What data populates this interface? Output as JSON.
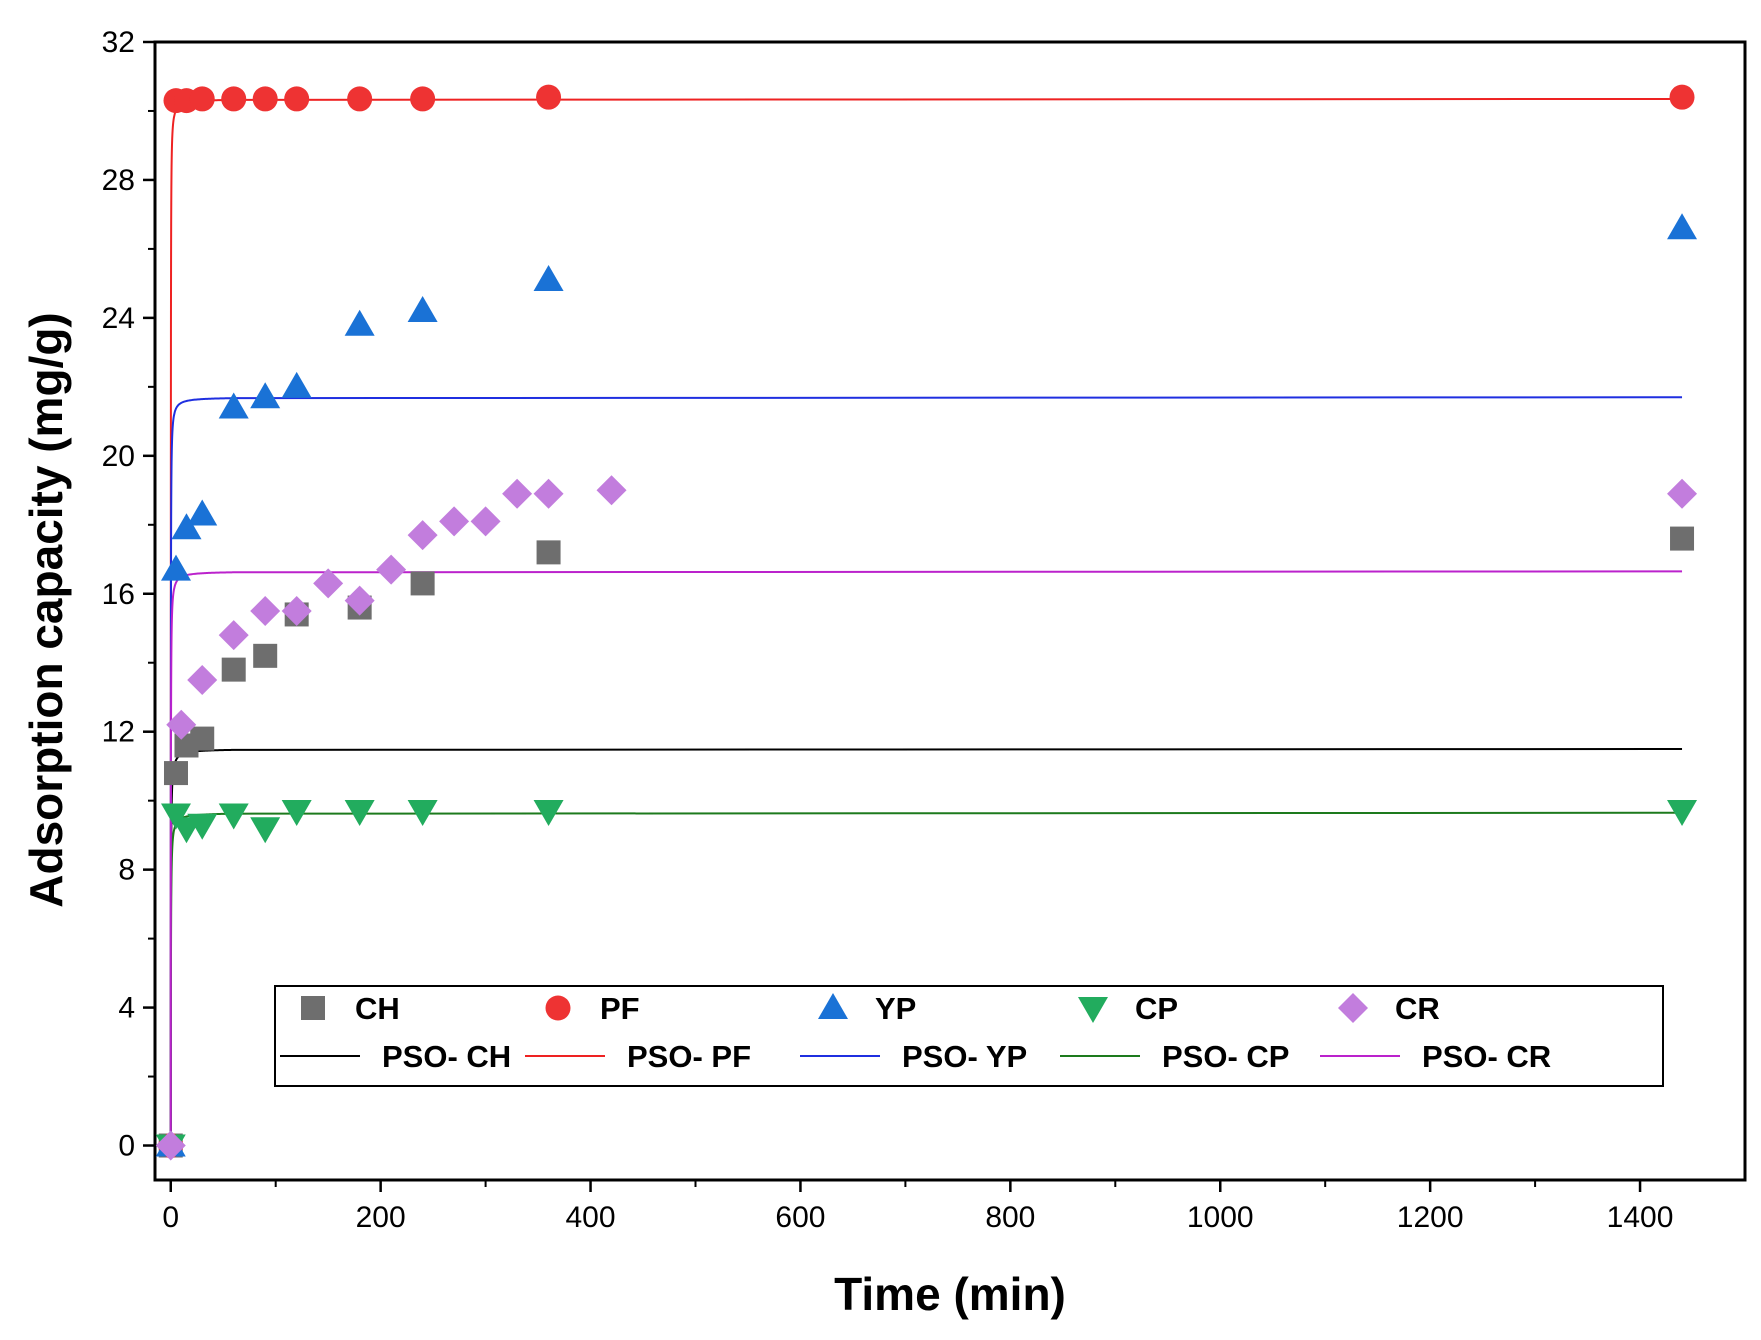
{
  "chart_data": {
    "type": "scatter",
    "title": "",
    "xlabel": "Time (min)",
    "ylabel": "Adsorption capacity (mg/g)",
    "xlim": [
      -15,
      1500
    ],
    "ylim": [
      -1,
      32
    ],
    "xticks": [
      0,
      200,
      400,
      600,
      800,
      1000,
      1200,
      1400
    ],
    "yticks": [
      0,
      4,
      8,
      12,
      16,
      20,
      24,
      28,
      32
    ],
    "grid": false,
    "legend_position": "bottom-center",
    "series": [
      {
        "name": "CH",
        "kind": "scatter",
        "marker": "square",
        "color": "#6e6e6e",
        "x": [
          0,
          5,
          15,
          30,
          60,
          90,
          120,
          180,
          240,
          360,
          1440
        ],
        "y": [
          0,
          10.8,
          11.6,
          11.8,
          13.8,
          14.2,
          15.4,
          15.6,
          16.3,
          17.2,
          17.6
        ]
      },
      {
        "name": "PF",
        "kind": "scatter",
        "marker": "circle",
        "color": "#ee3333",
        "x": [
          0,
          5,
          15,
          30,
          60,
          90,
          120,
          180,
          240,
          360,
          1440
        ],
        "y": [
          0,
          30.3,
          30.3,
          30.35,
          30.35,
          30.35,
          30.35,
          30.35,
          30.35,
          30.4,
          30.4
        ]
      },
      {
        "name": "YP",
        "kind": "scatter",
        "marker": "triangle-up",
        "color": "#1a72d6",
        "x": [
          0,
          5,
          15,
          30,
          60,
          90,
          120,
          180,
          240,
          360,
          1440
        ],
        "y": [
          0,
          16.7,
          17.9,
          18.3,
          21.4,
          21.7,
          22.0,
          23.8,
          24.2,
          25.1,
          26.6
        ]
      },
      {
        "name": "CP",
        "kind": "scatter",
        "marker": "triangle-down",
        "color": "#22ac5e",
        "x": [
          0,
          5,
          15,
          30,
          60,
          90,
          120,
          180,
          240,
          360,
          1440
        ],
        "y": [
          0,
          9.6,
          9.2,
          9.3,
          9.6,
          9.2,
          9.7,
          9.7,
          9.7,
          9.7,
          9.7
        ]
      },
      {
        "name": "CR",
        "kind": "scatter",
        "marker": "diamond",
        "color": "#c27ddd",
        "x": [
          0,
          10,
          30,
          60,
          90,
          120,
          150,
          180,
          210,
          240,
          270,
          300,
          330,
          360,
          420,
          1440
        ],
        "y": [
          0,
          12.2,
          13.5,
          14.8,
          15.5,
          15.5,
          16.3,
          15.8,
          16.7,
          17.7,
          18.1,
          18.1,
          18.9,
          18.9,
          19.0,
          18.9
        ]
      },
      {
        "name": "PSO- CH",
        "kind": "line",
        "color": "#000000",
        "qe": 11.5,
        "k": 0.6,
        "x_max": 1440
      },
      {
        "name": "PSO- PF",
        "kind": "line",
        "color": "#ee2222",
        "qe": 30.35,
        "k": 0.6,
        "x_max": 1440
      },
      {
        "name": "PSO- YP",
        "kind": "line",
        "color": "#1f2fe0",
        "qe": 21.7,
        "k": 0.6,
        "x_max": 1440
      },
      {
        "name": "PSO- CP",
        "kind": "line",
        "color": "#1d7a1d",
        "qe": 9.65,
        "k": 0.6,
        "x_max": 1440
      },
      {
        "name": "PSO- CR",
        "kind": "line",
        "color": "#bb22cc",
        "qe": 16.65,
        "k": 0.6,
        "x_max": 1440
      }
    ]
  }
}
